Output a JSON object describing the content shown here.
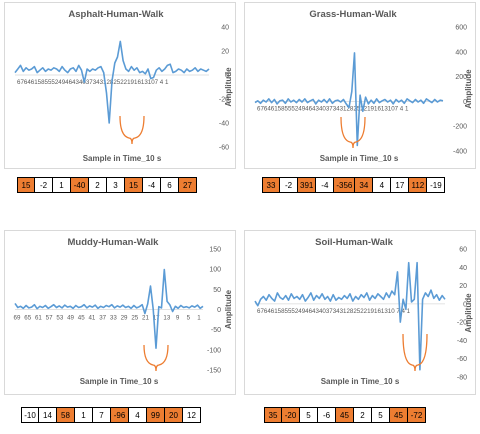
{
  "colors": {
    "line": "#5b9bd5",
    "highlight": "#ed7d31",
    "text": "#595959",
    "grid": "#d9d9d9"
  },
  "chart_data": [
    {
      "type": "line",
      "title": "Asphalt-Human-Walk",
      "xlabel": "Sample in Time_10 s",
      "ylabel": "Amplitude",
      "ylim": [
        -60,
        40
      ],
      "yticks": [
        40,
        20,
        0,
        -20,
        -40,
        -60
      ],
      "x_axis_at": 0,
      "x_reversed": true,
      "x_tick_text": "67646158555249464340373431282522191613107 4 1",
      "values": [
        2,
        5,
        8,
        3,
        6,
        4,
        5,
        7,
        2,
        4,
        6,
        3,
        5,
        4,
        6,
        5,
        3,
        7,
        4,
        2,
        5,
        6,
        3,
        8,
        4,
        -6,
        5,
        3,
        5,
        4,
        6,
        7,
        2,
        -15,
        -40,
        -5,
        10,
        15,
        28,
        12,
        5,
        3,
        7,
        4,
        6,
        2,
        3,
        1,
        5,
        -3,
        -2,
        4,
        6,
        3,
        5,
        8,
        9,
        2,
        3,
        5,
        4,
        2,
        5,
        3,
        4,
        6,
        3,
        5,
        4,
        3,
        5
      ],
      "highlight_values": [
        15,
        -2,
        1,
        -40,
        2,
        3,
        15,
        -4,
        6,
        27
      ],
      "highlighted": [
        true,
        false,
        false,
        true,
        false,
        false,
        true,
        false,
        false,
        true
      ]
    },
    {
      "type": "line",
      "title": "Grass-Human-Walk",
      "xlabel": "Sample in Time_10 s",
      "ylabel": "Amplitude",
      "ylim": [
        -400,
        600
      ],
      "yticks": [
        600,
        400,
        200,
        0,
        -200,
        -400
      ],
      "x_axis_at": 0,
      "x_reversed": true,
      "x_tick_text": "67646158555249464340373431282522191613107 4 1",
      "values": [
        -10,
        5,
        -15,
        10,
        -5,
        20,
        -10,
        15,
        -20,
        5,
        10,
        -15,
        20,
        -5,
        10,
        -10,
        15,
        -5,
        20,
        -10,
        5,
        15,
        -20,
        10,
        -5,
        15,
        -10,
        20,
        -15,
        5,
        10,
        -5,
        15,
        -20,
        -50,
        80,
        391,
        -356,
        50,
        -80,
        34,
        -20,
        10,
        -15,
        20,
        -10,
        5,
        15,
        -5,
        10,
        -20,
        15,
        -5,
        10,
        -15,
        20,
        5,
        -10,
        15,
        -5,
        10,
        -15,
        20,
        5,
        -10,
        15,
        -5,
        10,
        5
      ],
      "highlight_values": [
        33,
        -2,
        391,
        -4,
        -356,
        34,
        4,
        17,
        112,
        -19
      ],
      "highlighted": [
        true,
        false,
        true,
        false,
        true,
        true,
        false,
        false,
        true,
        false
      ]
    },
    {
      "type": "line",
      "title": "Muddy-Human-Walk",
      "xlabel": "Sample in Time_10 s",
      "ylabel": "Amplitude",
      "ylim": [
        -150,
        150
      ],
      "yticks": [
        150,
        100,
        50,
        0,
        -50,
        -100,
        -150
      ],
      "x_axis_at": 0,
      "x_reversed": true,
      "x_ticks": [
        "69",
        "65",
        "61",
        "57",
        "53",
        "49",
        "45",
        "41",
        "37",
        "33",
        "29",
        "25",
        "21",
        "17",
        "13",
        "9",
        "5",
        "1"
      ],
      "values": [
        15,
        5,
        8,
        3,
        10,
        4,
        6,
        12,
        2,
        8,
        5,
        10,
        3,
        7,
        12,
        5,
        9,
        4,
        11,
        6,
        8,
        3,
        10,
        5,
        7,
        12,
        4,
        9,
        6,
        11,
        3,
        8,
        5,
        10,
        7,
        12,
        4,
        9,
        6,
        11,
        5,
        8,
        3,
        10,
        4,
        7,
        12,
        -10,
        14,
        58,
        1,
        -96,
        7,
        4,
        99,
        20,
        12,
        -5,
        8,
        3,
        10,
        5,
        7,
        4,
        9,
        6,
        11,
        3,
        8
      ],
      "highlight_values": [
        -10,
        14,
        58,
        1,
        7,
        -96,
        4,
        99,
        20,
        12
      ],
      "highlighted": [
        false,
        false,
        true,
        false,
        false,
        true,
        false,
        true,
        true,
        false
      ]
    },
    {
      "type": "line",
      "title": "Soil-Human-Walk",
      "xlabel": "Sample in Time_10 s",
      "ylabel": "Amplitude",
      "ylim": [
        -80,
        60
      ],
      "yticks": [
        60,
        40,
        20,
        0,
        -20,
        -40,
        -60,
        -80
      ],
      "x_axis_at": 0,
      "x_reversed": true,
      "x_tick_text": "6764615855524946434037343128252219161310 7 4 1",
      "values": [
        3,
        -2,
        5,
        8,
        4,
        10,
        6,
        3,
        12,
        7,
        5,
        9,
        4,
        11,
        6,
        8,
        5,
        10,
        3,
        7,
        12,
        4,
        9,
        6,
        11,
        5,
        8,
        3,
        10,
        4,
        7,
        5,
        9,
        6,
        11,
        3,
        8,
        5,
        10,
        7,
        12,
        4,
        9,
        6,
        11,
        8,
        5,
        12,
        7,
        14,
        10,
        35,
        -20,
        5,
        -6,
        45,
        2,
        5,
        45,
        -72,
        5,
        12,
        8,
        15,
        6,
        10,
        4,
        9,
        5
      ],
      "highlight_values": [
        35,
        -20,
        5,
        -6,
        45,
        2,
        5,
        45,
        -72
      ],
      "highlighted": [
        true,
        true,
        false,
        false,
        true,
        false,
        false,
        true,
        true
      ]
    }
  ]
}
